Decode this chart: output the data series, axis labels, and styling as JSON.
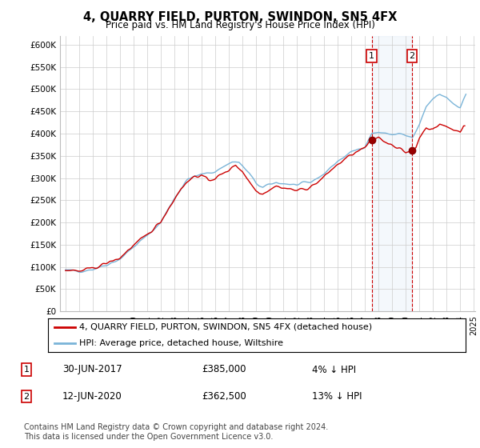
{
  "title": "4, QUARRY FIELD, PURTON, SWINDON, SN5 4FX",
  "subtitle": "Price paid vs. HM Land Registry's House Price Index (HPI)",
  "ylabel_ticks": [
    "£0",
    "£50K",
    "£100K",
    "£150K",
    "£200K",
    "£250K",
    "£300K",
    "£350K",
    "£400K",
    "£450K",
    "£500K",
    "£550K",
    "£600K"
  ],
  "ytick_values": [
    0,
    50000,
    100000,
    150000,
    200000,
    250000,
    300000,
    350000,
    400000,
    450000,
    500000,
    550000,
    600000
  ],
  "ylim": [
    0,
    620000
  ],
  "legend_line1": "4, QUARRY FIELD, PURTON, SWINDON, SN5 4FX (detached house)",
  "legend_line2": "HPI: Average price, detached house, Wiltshire",
  "annotation1_label": "1",
  "annotation1_date": "30-JUN-2017",
  "annotation1_price": "£385,000",
  "annotation1_hpi": "4% ↓ HPI",
  "annotation2_label": "2",
  "annotation2_date": "12-JUN-2020",
  "annotation2_price": "£362,500",
  "annotation2_hpi": "13% ↓ HPI",
  "footer": "Contains HM Land Registry data © Crown copyright and database right 2024.\nThis data is licensed under the Open Government Licence v3.0.",
  "hpi_color": "#7ab4d8",
  "price_color": "#cc0000",
  "marker1_year": 2017.5,
  "marker2_year": 2020.45,
  "shade_color": "#ddeeff"
}
